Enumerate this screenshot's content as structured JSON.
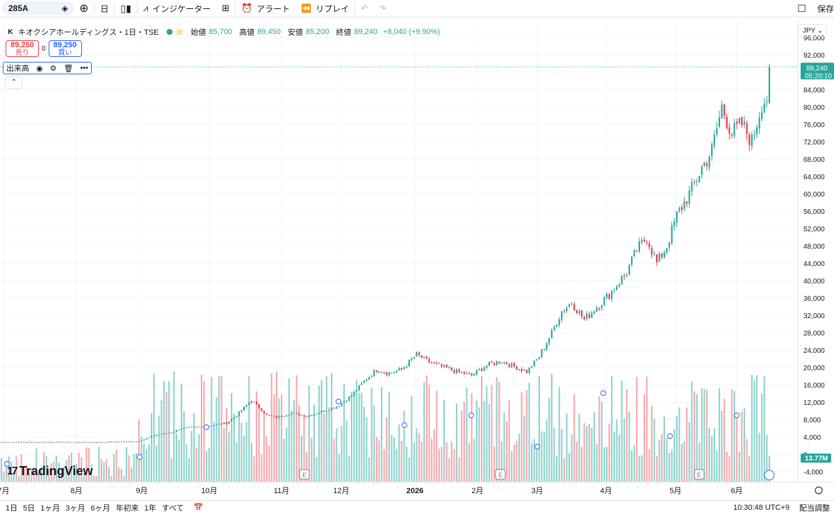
{
  "toolbar": {
    "symbol": "285A",
    "interval": "日",
    "indicators_label": "インジケーター",
    "alert_label": "アラート",
    "replay_label": "リプレイ",
    "save_label": "保存"
  },
  "legend": {
    "title": "キオクシアホールディングス・1日・TSE",
    "open_label": "始値",
    "open": "85,700",
    "high_label": "高値",
    "high": "89,450",
    "low_label": "安値",
    "low": "85,200",
    "close_label": "終値",
    "close": "89,240",
    "change": "+8,040 (+9.90%)",
    "market_status": "D"
  },
  "trade": {
    "sell_price": "89,250",
    "sell_label": "売り",
    "spread": "0",
    "buy_price": "89,250",
    "buy_label": "買い"
  },
  "volume_legend": {
    "label": "出来高"
  },
  "currency": "JPY",
  "price_scale": {
    "ticks": [
      "96,000",
      "92,000",
      "88,000",
      "84,000",
      "80,000",
      "76,000",
      "72,000",
      "68,000",
      "64,000",
      "60,000",
      "56,000",
      "52,000",
      "48,000",
      "44,000",
      "40,000",
      "36,000",
      "32,000",
      "28,000",
      "24,000",
      "20,000",
      "16,000",
      "12,000",
      "8,000",
      "4,000",
      "0",
      "-4,000"
    ],
    "last_price": "89,240",
    "countdown": "05:20:10",
    "volume_label": "13.77M"
  },
  "time_scale": {
    "labels": [
      "7月",
      "8月",
      "9月",
      "10月",
      "11月",
      "12月",
      "2026",
      "2月",
      "3月",
      "4月",
      "5月",
      "6月"
    ]
  },
  "bottom": {
    "ranges": [
      "1日",
      "5日",
      "1ヶ月",
      "3ヶ月",
      "6ヶ月",
      "年初来",
      "1年",
      "すべて"
    ],
    "clock": "10:30:48 UTC+9",
    "adjust_label": "配当調整"
  },
  "branding": {
    "logo_text": "TradingView"
  },
  "colors": {
    "up": "#26a69a",
    "down": "#f23645",
    "vol_up": "#8fd3cc",
    "vol_down": "#f7a8ae",
    "accent": "#2962ff"
  },
  "chart_data": {
    "type": "candlestick",
    "x_labels": [
      "7月",
      "8月",
      "9月",
      "10月",
      "11月",
      "12月",
      "2026",
      "2月",
      "3月",
      "4月",
      "5月",
      "6月"
    ],
    "ylim": [
      -4000,
      96000
    ],
    "last_close": 89240,
    "anchor_closes": [
      [
        0,
        2800
      ],
      [
        40,
        2800
      ],
      [
        55,
        3000
      ],
      [
        62,
        4500
      ],
      [
        68,
        5000
      ],
      [
        72,
        6000
      ],
      [
        80,
        6300
      ],
      [
        90,
        7200
      ],
      [
        95,
        9500
      ],
      [
        100,
        12500
      ],
      [
        106,
        9000
      ],
      [
        110,
        8500
      ],
      [
        116,
        9500
      ],
      [
        122,
        8800
      ],
      [
        128,
        9800
      ],
      [
        134,
        11000
      ],
      [
        140,
        13500
      ],
      [
        146,
        17500
      ],
      [
        150,
        19500
      ],
      [
        155,
        18700
      ],
      [
        160,
        19500
      ],
      [
        166,
        23000
      ],
      [
        170,
        21500
      ],
      [
        176,
        20200
      ],
      [
        182,
        19000
      ],
      [
        188,
        18200
      ],
      [
        194,
        20500
      ],
      [
        200,
        21500
      ],
      [
        206,
        20000
      ],
      [
        210,
        19000
      ],
      [
        215,
        22500
      ],
      [
        220,
        28000
      ],
      [
        224,
        33000
      ],
      [
        228,
        35000
      ],
      [
        233,
        31000
      ],
      [
        238,
        34000
      ],
      [
        243,
        36800
      ],
      [
        250,
        42000
      ],
      [
        254,
        47000
      ],
      [
        258,
        50000
      ],
      [
        262,
        44000
      ],
      [
        266,
        48000
      ],
      [
        270,
        55000
      ],
      [
        276,
        61000
      ],
      [
        280,
        66000
      ],
      [
        284,
        70000
      ],
      [
        288,
        80000
      ],
      [
        292,
        74000
      ],
      [
        296,
        76000
      ],
      [
        300,
        72000
      ],
      [
        304,
        81000
      ],
      [
        306,
        82000
      ],
      [
        307,
        89240
      ]
    ],
    "volume_ylim": [
      0,
      25000
    ]
  }
}
